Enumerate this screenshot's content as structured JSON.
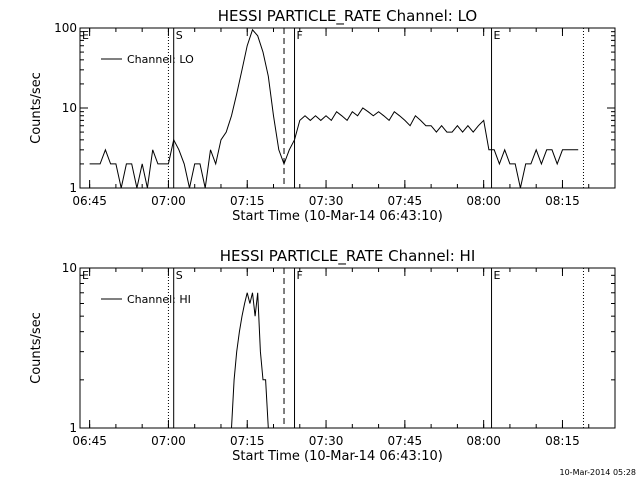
{
  "chart_data": [
    {
      "type": "line",
      "title": "HESSI PARTICLE_RATE Channel: LO",
      "xlabel": "Start Time (10-Mar-14 06:43:10)",
      "ylabel": "Counts/sec",
      "yscale": "log",
      "ylim": [
        1,
        100
      ],
      "xlim": [
        "06:43:10",
        "08:25:00"
      ],
      "x_ticks": [
        "06:45",
        "07:00",
        "07:15",
        "07:30",
        "07:45",
        "08:00",
        "08:15"
      ],
      "y_ticks": [
        "1",
        "10",
        "100"
      ],
      "legend": {
        "label": "Channel: LO",
        "placement": "top-left"
      },
      "markers": [
        {
          "label": "E",
          "time": "06:43:10",
          "style": "solid"
        },
        {
          "label": "",
          "time": "07:00:00",
          "style": "dotted"
        },
        {
          "label": "S",
          "time": "07:01:00",
          "style": "solid"
        },
        {
          "label": "",
          "time": "07:22:00",
          "style": "dashed"
        },
        {
          "label": "F",
          "time": "07:24:00",
          "style": "solid"
        },
        {
          "label": "E",
          "time": "08:01:30",
          "style": "solid"
        },
        {
          "label": "",
          "time": "08:19:00",
          "style": "dotted"
        }
      ],
      "series": [
        {
          "x": [
            "06:45",
            "06:46",
            "06:47",
            "06:48",
            "06:49",
            "06:50",
            "06:51",
            "06:52",
            "06:53",
            "06:54",
            "06:55",
            "06:56",
            "06:57",
            "06:58",
            "06:59",
            "07:00",
            "07:01",
            "07:02",
            "07:03",
            "07:04",
            "07:05",
            "07:06",
            "07:07",
            "07:08",
            "07:09",
            "07:10",
            "07:11",
            "07:12",
            "07:13",
            "07:14",
            "07:15",
            "07:16",
            "07:17",
            "07:18",
            "07:19",
            "07:20",
            "07:21",
            "07:22",
            "07:23",
            "07:24",
            "07:25",
            "07:26",
            "07:27",
            "07:28",
            "07:29",
            "07:30",
            "07:31",
            "07:32",
            "07:33",
            "07:34",
            "07:35",
            "07:36",
            "07:37",
            "07:38",
            "07:39",
            "07:40",
            "07:41",
            "07:42",
            "07:43",
            "07:44",
            "07:45",
            "07:46",
            "07:47",
            "07:48",
            "07:49",
            "07:50",
            "07:51",
            "07:52",
            "07:53",
            "07:54",
            "07:55",
            "07:56",
            "07:57",
            "07:58",
            "07:59",
            "08:00",
            "08:01",
            "08:02",
            "08:03",
            "08:04",
            "08:05",
            "08:06",
            "08:07",
            "08:08",
            "08:09",
            "08:10",
            "08:11",
            "08:12",
            "08:13",
            "08:14",
            "08:15",
            "08:16",
            "08:17",
            "08:18"
          ],
          "values": [
            2,
            2,
            2,
            3,
            2,
            2,
            1,
            2,
            2,
            1,
            2,
            1,
            3,
            2,
            2,
            2,
            4,
            3,
            2,
            1,
            2,
            2,
            1,
            3,
            2,
            4,
            5,
            8,
            15,
            30,
            60,
            95,
            80,
            50,
            25,
            8,
            3,
            2,
            3,
            4,
            7,
            8,
            7,
            8,
            7,
            8,
            7,
            9,
            8,
            7,
            9,
            8,
            10,
            9,
            8,
            9,
            8,
            7,
            9,
            8,
            7,
            6,
            8,
            7,
            6,
            6,
            5,
            6,
            5,
            5,
            6,
            5,
            6,
            5,
            6,
            7,
            3,
            3,
            2,
            3,
            2,
            2,
            1,
            2,
            2,
            3,
            2,
            3,
            3,
            2,
            3,
            3,
            3,
            3
          ]
        }
      ]
    },
    {
      "type": "line",
      "title": "HESSI PARTICLE_RATE Channel: HI",
      "xlabel": "Start Time (10-Mar-14 06:43:10)",
      "ylabel": "Counts/sec",
      "yscale": "log",
      "ylim": [
        1,
        10
      ],
      "xlim": [
        "06:43:10",
        "08:25:00"
      ],
      "x_ticks": [
        "06:45",
        "07:00",
        "07:15",
        "07:30",
        "07:45",
        "08:00",
        "08:15"
      ],
      "y_ticks": [
        "1",
        "10"
      ],
      "legend": {
        "label": "Channel: HI",
        "placement": "top-left"
      },
      "markers": [
        {
          "label": "E",
          "time": "06:43:10",
          "style": "solid"
        },
        {
          "label": "",
          "time": "07:00:00",
          "style": "dotted"
        },
        {
          "label": "S",
          "time": "07:01:00",
          "style": "solid"
        },
        {
          "label": "",
          "time": "07:22:00",
          "style": "dashed"
        },
        {
          "label": "F",
          "time": "07:24:00",
          "style": "solid"
        },
        {
          "label": "E",
          "time": "08:01:30",
          "style": "solid"
        },
        {
          "label": "",
          "time": "08:19:00",
          "style": "dotted"
        }
      ],
      "series": [
        {
          "x": [
            "07:12:00",
            "07:12:30",
            "07:13:00",
            "07:13:30",
            "07:14:00",
            "07:14:30",
            "07:15:00",
            "07:15:30",
            "07:16:00",
            "07:16:30",
            "07:17:00",
            "07:17:30",
            "07:18:00",
            "07:18:30",
            "07:19:00"
          ],
          "values": [
            1,
            2,
            3,
            4,
            5,
            6,
            7,
            6,
            7,
            5,
            7,
            3,
            2,
            2,
            1
          ]
        }
      ]
    }
  ],
  "footer": {
    "timestamp": "10-Mar-2014 05:28"
  }
}
